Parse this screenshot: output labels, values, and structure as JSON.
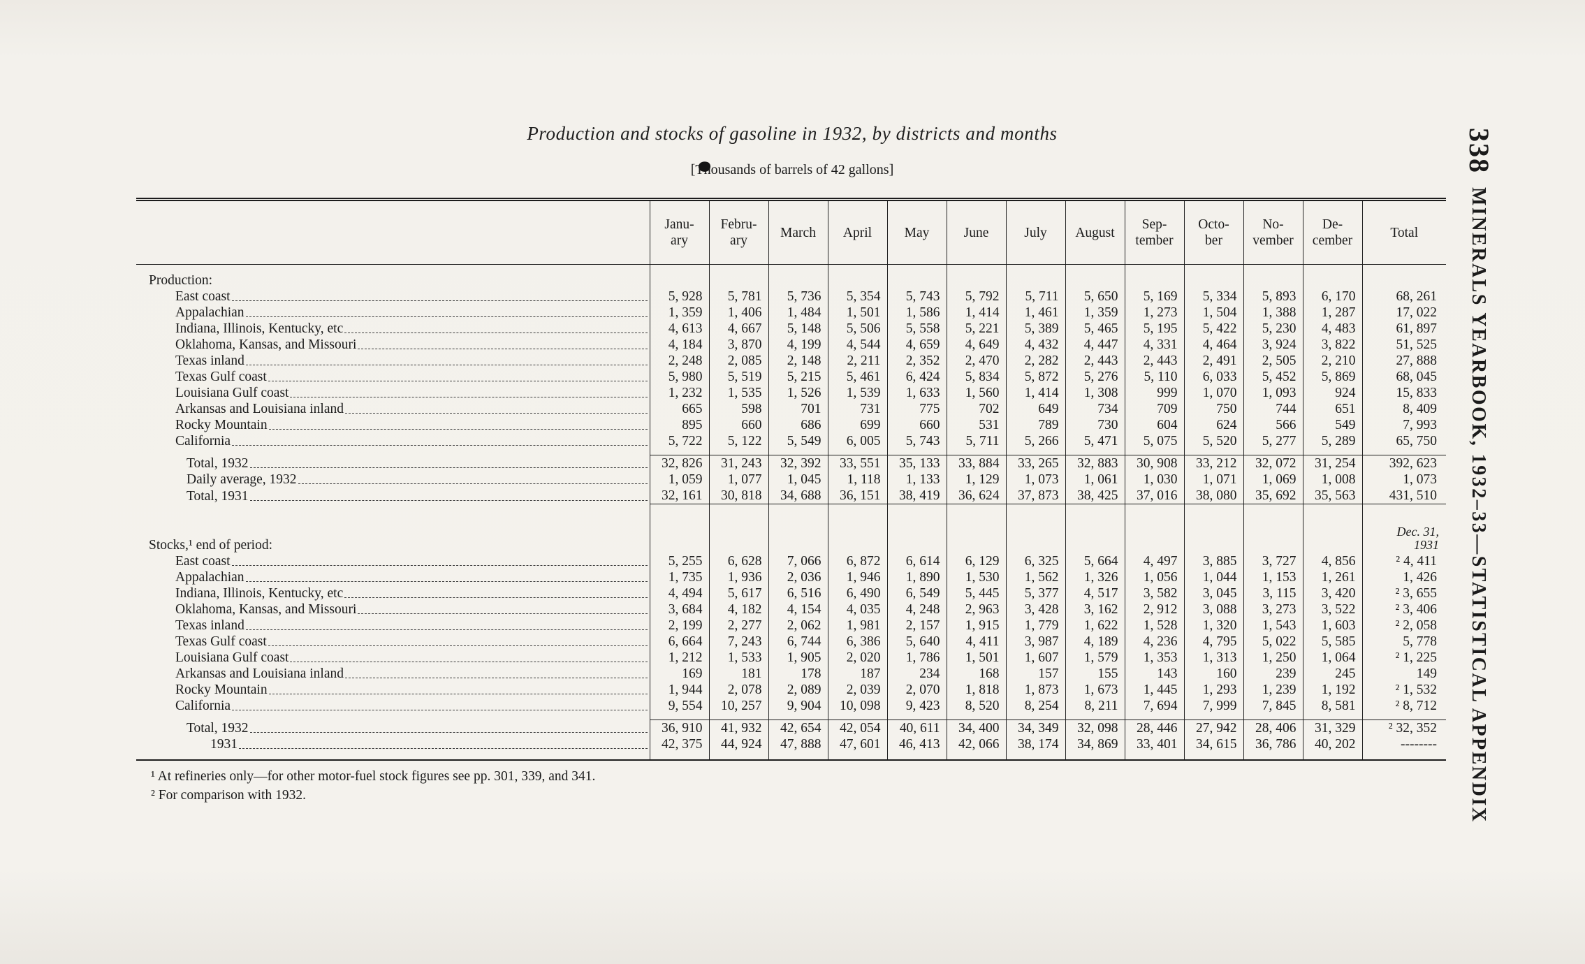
{
  "page": {
    "title": "Production and stocks of gasoline in 1932, by districts and months",
    "subtitle": "[Thousands of barrels of 42 gallons]",
    "side": {
      "page_number": "338",
      "text": "MINERALS YEARBOOK, 1932–33—STATISTICAL APPENDIX"
    },
    "footnotes": [
      "¹ At refineries only—for other motor-fuel stock figures see pp. 301, 339, and 341.",
      "² For comparison with 1932."
    ]
  },
  "table": {
    "columns": [
      "Janu-\nary",
      "Febru-\nary",
      "March",
      "April",
      "May",
      "June",
      "July",
      "August",
      "Sep-\ntember",
      "Octo-\nber",
      "No-\nvember",
      "De-\ncember",
      "Total"
    ],
    "sections": [
      {
        "heading": "Production:",
        "note": "",
        "rows": [
          {
            "label": "East coast",
            "values": [
              "5, 928",
              "5, 781",
              "5, 736",
              "5, 354",
              "5, 743",
              "5, 792",
              "5, 711",
              "5, 650",
              "5, 169",
              "5, 334",
              "5, 893",
              "6, 170",
              "68, 261"
            ]
          },
          {
            "label": "Appalachian",
            "values": [
              "1, 359",
              "1, 406",
              "1, 484",
              "1, 501",
              "1, 586",
              "1, 414",
              "1, 461",
              "1, 359",
              "1, 273",
              "1, 504",
              "1, 388",
              "1, 287",
              "17, 022"
            ]
          },
          {
            "label": "Indiana, Illinois, Kentucky, etc",
            "values": [
              "4, 613",
              "4, 667",
              "5, 148",
              "5, 506",
              "5, 558",
              "5, 221",
              "5, 389",
              "5, 465",
              "5, 195",
              "5, 422",
              "5, 230",
              "4, 483",
              "61, 897"
            ]
          },
          {
            "label": "Oklahoma, Kansas, and Missouri",
            "values": [
              "4, 184",
              "3, 870",
              "4, 199",
              "4, 544",
              "4, 659",
              "4, 649",
              "4, 432",
              "4, 447",
              "4, 331",
              "4, 464",
              "3, 924",
              "3, 822",
              "51, 525"
            ]
          },
          {
            "label": "Texas inland",
            "values": [
              "2, 248",
              "2, 085",
              "2, 148",
              "2, 211",
              "2, 352",
              "2, 470",
              "2, 282",
              "2, 443",
              "2, 443",
              "2, 491",
              "2, 505",
              "2, 210",
              "27, 888"
            ]
          },
          {
            "label": "Texas Gulf coast",
            "values": [
              "5, 980",
              "5, 519",
              "5, 215",
              "5, 461",
              "6, 424",
              "5, 834",
              "5, 872",
              "5, 276",
              "5, 110",
              "6, 033",
              "5, 452",
              "5, 869",
              "68, 045"
            ]
          },
          {
            "label": "Louisiana Gulf coast",
            "values": [
              "1, 232",
              "1, 535",
              "1, 526",
              "1, 539",
              "1, 633",
              "1, 560",
              "1, 414",
              "1, 308",
              "999",
              "1, 070",
              "1, 093",
              "924",
              "15, 833"
            ]
          },
          {
            "label": "Arkansas and Louisiana inland",
            "values": [
              "665",
              "598",
              "701",
              "731",
              "775",
              "702",
              "649",
              "734",
              "709",
              "750",
              "744",
              "651",
              "8, 409"
            ]
          },
          {
            "label": "Rocky Mountain",
            "values": [
              "895",
              "660",
              "686",
              "699",
              "660",
              "531",
              "789",
              "730",
              "604",
              "624",
              "566",
              "549",
              "7, 993"
            ]
          },
          {
            "label": "California",
            "values": [
              "5, 722",
              "5, 122",
              "5, 549",
              "6, 005",
              "5, 743",
              "5, 711",
              "5, 266",
              "5, 471",
              "5, 075",
              "5, 520",
              "5, 277",
              "5, 289",
              "65, 750"
            ]
          }
        ],
        "totals": [
          {
            "label": "Total, 1932",
            "indent": 2,
            "values": [
              "32, 826",
              "31, 243",
              "32, 392",
              "33, 551",
              "35, 133",
              "33, 884",
              "33, 265",
              "32, 883",
              "30, 908",
              "33, 212",
              "32, 072",
              "31, 254",
              "392, 623"
            ]
          },
          {
            "label": "Daily average, 1932",
            "indent": 2,
            "values": [
              "1, 059",
              "1, 077",
              "1, 045",
              "1, 118",
              "1, 133",
              "1, 129",
              "1, 073",
              "1, 061",
              "1, 030",
              "1, 071",
              "1, 069",
              "1, 008",
              "1, 073"
            ]
          },
          {
            "label": "Total, 1931",
            "indent": 2,
            "values": [
              "32, 161",
              "30, 818",
              "34, 688",
              "36, 151",
              "38, 419",
              "36, 624",
              "37, 873",
              "38, 425",
              "37, 016",
              "38, 080",
              "35, 692",
              "35, 563",
              "431, 510"
            ]
          }
        ]
      },
      {
        "heading": "Stocks,¹ end of period:",
        "note": "Dec. 31,\n1931",
        "rows": [
          {
            "label": "East coast",
            "values": [
              "5, 255",
              "6, 628",
              "7, 066",
              "6, 872",
              "6, 614",
              "6, 129",
              "6, 325",
              "5, 664",
              "4, 497",
              "3, 885",
              "3, 727",
              "4, 856",
              "² 4, 411"
            ]
          },
          {
            "label": "Appalachian",
            "values": [
              "1, 735",
              "1, 936",
              "2, 036",
              "1, 946",
              "1, 890",
              "1, 530",
              "1, 562",
              "1, 326",
              "1, 056",
              "1, 044",
              "1, 153",
              "1, 261",
              "1, 426"
            ]
          },
          {
            "label": "Indiana, Illinois, Kentucky, etc",
            "values": [
              "4, 494",
              "5, 617",
              "6, 516",
              "6, 490",
              "6, 549",
              "5, 445",
              "5, 377",
              "4, 517",
              "3, 582",
              "3, 045",
              "3, 115",
              "3, 420",
              "² 3, 655"
            ]
          },
          {
            "label": "Oklahoma, Kansas, and Missouri",
            "values": [
              "3, 684",
              "4, 182",
              "4, 154",
              "4, 035",
              "4, 248",
              "2, 963",
              "3, 428",
              "3, 162",
              "2, 912",
              "3, 088",
              "3, 273",
              "3, 522",
              "² 3, 406"
            ]
          },
          {
            "label": "Texas inland",
            "values": [
              "2, 199",
              "2, 277",
              "2, 062",
              "1, 981",
              "2, 157",
              "1, 915",
              "1, 779",
              "1, 622",
              "1, 528",
              "1, 320",
              "1, 543",
              "1, 603",
              "² 2, 058"
            ]
          },
          {
            "label": "Texas Gulf coast",
            "values": [
              "6, 664",
              "7, 243",
              "6, 744",
              "6, 386",
              "5, 640",
              "4, 411",
              "3, 987",
              "4, 189",
              "4, 236",
              "4, 795",
              "5, 022",
              "5, 585",
              "5, 778"
            ]
          },
          {
            "label": "Louisiana Gulf coast",
            "values": [
              "1, 212",
              "1, 533",
              "1, 905",
              "2, 020",
              "1, 786",
              "1, 501",
              "1, 607",
              "1, 579",
              "1, 353",
              "1, 313",
              "1, 250",
              "1, 064",
              "² 1, 225"
            ]
          },
          {
            "label": "Arkansas and Louisiana inland",
            "values": [
              "169",
              "181",
              "178",
              "187",
              "234",
              "168",
              "157",
              "155",
              "143",
              "160",
              "239",
              "245",
              "149"
            ]
          },
          {
            "label": "Rocky Mountain",
            "values": [
              "1, 944",
              "2, 078",
              "2, 089",
              "2, 039",
              "2, 070",
              "1, 818",
              "1, 873",
              "1, 673",
              "1, 445",
              "1, 293",
              "1, 239",
              "1, 192",
              "² 1, 532"
            ]
          },
          {
            "label": "California",
            "values": [
              "9, 554",
              "10, 257",
              "9, 904",
              "10, 098",
              "9, 423",
              "8, 520",
              "8, 254",
              "8, 211",
              "7, 694",
              "7, 999",
              "7, 845",
              "8, 581",
              "² 8, 712"
            ]
          }
        ],
        "totals": [
          {
            "label": "Total, 1932",
            "indent": 2,
            "values": [
              "36, 910",
              "41, 932",
              "42, 654",
              "42, 054",
              "40, 611",
              "34, 400",
              "34, 349",
              "32, 098",
              "28, 446",
              "27, 942",
              "28, 406",
              "31, 329",
              "² 32, 352"
            ]
          },
          {
            "label": "1931",
            "indent": 3,
            "values": [
              "42, 375",
              "44, 924",
              "47, 888",
              "47, 601",
              "46, 413",
              "42, 066",
              "38, 174",
              "34, 869",
              "33, 401",
              "34, 615",
              "36, 786",
              "40, 202",
              "--------"
            ]
          }
        ]
      }
    ]
  }
}
